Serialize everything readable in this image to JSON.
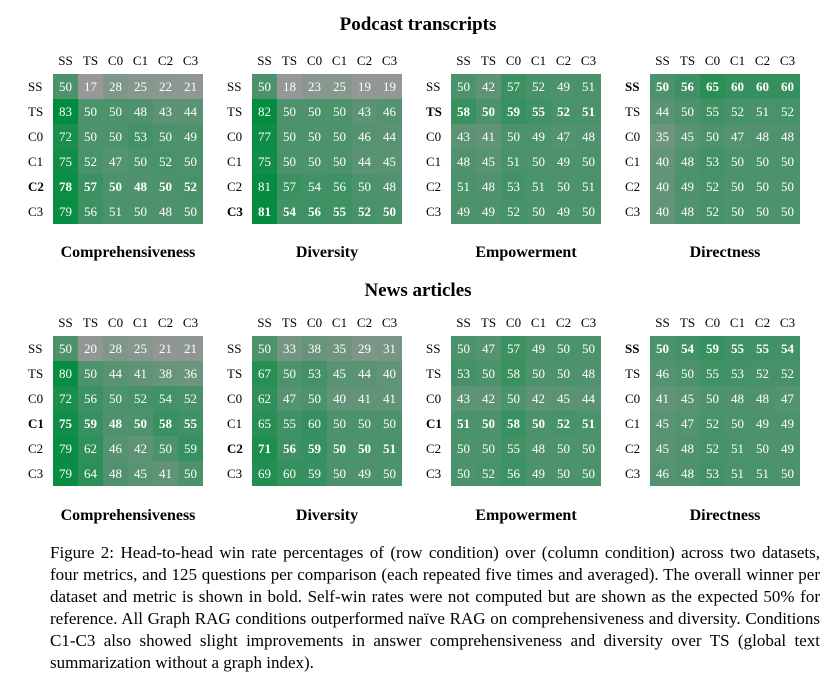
{
  "figure_number": "Figure 2:",
  "caption": "Head-to-head win rate percentages of (row condition) over (column condition) across two datasets, four metrics, and 125 questions per comparison (each repeated five times and averaged). The overall winner per dataset and metric is shown in bold. Self-win rates were not computed but are shown as the expected 50% for reference. All Graph RAG conditions outperformed naïve RAG on comprehensiveness and diversity. Conditions C1-C3 also showed slight improvements in answer comprehensiveness and diversity over TS (global text summarization without a graph index).",
  "conditions": [
    "SS",
    "TS",
    "C0",
    "C1",
    "C2",
    "C3"
  ],
  "chart_data": [
    {
      "type": "heatmap",
      "dataset": "Podcast transcripts",
      "metric": "Comprehensiveness",
      "rows": [
        "SS",
        "TS",
        "C0",
        "C1",
        "C2",
        "C3"
      ],
      "columns": [
        "SS",
        "TS",
        "C0",
        "C1",
        "C2",
        "C3"
      ],
      "bold_row": "C2",
      "values": [
        [
          50,
          17,
          28,
          25,
          22,
          21
        ],
        [
          83,
          50,
          50,
          48,
          43,
          44
        ],
        [
          72,
          50,
          50,
          53,
          50,
          49
        ],
        [
          75,
          52,
          47,
          50,
          52,
          50
        ],
        [
          78,
          57,
          50,
          48,
          50,
          52
        ],
        [
          79,
          56,
          51,
          50,
          48,
          50
        ]
      ]
    },
    {
      "type": "heatmap",
      "dataset": "Podcast transcripts",
      "metric": "Diversity",
      "rows": [
        "SS",
        "TS",
        "C0",
        "C1",
        "C2",
        "C3"
      ],
      "columns": [
        "SS",
        "TS",
        "C0",
        "C1",
        "C2",
        "C3"
      ],
      "bold_row": "C3",
      "values": [
        [
          50,
          18,
          23,
          25,
          19,
          19
        ],
        [
          82,
          50,
          50,
          50,
          43,
          46
        ],
        [
          77,
          50,
          50,
          50,
          46,
          44
        ],
        [
          75,
          50,
          50,
          50,
          44,
          45
        ],
        [
          81,
          57,
          54,
          56,
          50,
          48
        ],
        [
          81,
          54,
          56,
          55,
          52,
          50
        ]
      ]
    },
    {
      "type": "heatmap",
      "dataset": "Podcast transcripts",
      "metric": "Empowerment",
      "rows": [
        "SS",
        "TS",
        "C0",
        "C1",
        "C2",
        "C3"
      ],
      "columns": [
        "SS",
        "TS",
        "C0",
        "C1",
        "C2",
        "C3"
      ],
      "bold_row": "TS",
      "values": [
        [
          50,
          42,
          57,
          52,
          49,
          51
        ],
        [
          58,
          50,
          59,
          55,
          52,
          51
        ],
        [
          43,
          41,
          50,
          49,
          47,
          48
        ],
        [
          48,
          45,
          51,
          50,
          49,
          50
        ],
        [
          51,
          48,
          53,
          51,
          50,
          51
        ],
        [
          49,
          49,
          52,
          50,
          49,
          50
        ]
      ]
    },
    {
      "type": "heatmap",
      "dataset": "Podcast transcripts",
      "metric": "Directness",
      "rows": [
        "SS",
        "TS",
        "C0",
        "C1",
        "C2",
        "C3"
      ],
      "columns": [
        "SS",
        "TS",
        "C0",
        "C1",
        "C2",
        "C3"
      ],
      "bold_row": "SS",
      "values": [
        [
          50,
          56,
          65,
          60,
          60,
          60
        ],
        [
          44,
          50,
          55,
          52,
          51,
          52
        ],
        [
          35,
          45,
          50,
          47,
          48,
          48
        ],
        [
          40,
          48,
          53,
          50,
          50,
          50
        ],
        [
          40,
          49,
          52,
          50,
          50,
          50
        ],
        [
          40,
          48,
          52,
          50,
          50,
          50
        ]
      ]
    },
    {
      "type": "heatmap",
      "dataset": "News articles",
      "metric": "Comprehensiveness",
      "rows": [
        "SS",
        "TS",
        "C0",
        "C1",
        "C2",
        "C3"
      ],
      "columns": [
        "SS",
        "TS",
        "C0",
        "C1",
        "C2",
        "C3"
      ],
      "bold_row": "C1",
      "values": [
        [
          50,
          20,
          28,
          25,
          21,
          21
        ],
        [
          80,
          50,
          44,
          41,
          38,
          36
        ],
        [
          72,
          56,
          50,
          52,
          54,
          52
        ],
        [
          75,
          59,
          48,
          50,
          58,
          55
        ],
        [
          79,
          62,
          46,
          42,
          50,
          59
        ],
        [
          79,
          64,
          48,
          45,
          41,
          50
        ]
      ]
    },
    {
      "type": "heatmap",
      "dataset": "News articles",
      "metric": "Diversity",
      "rows": [
        "SS",
        "TS",
        "C0",
        "C1",
        "C2",
        "C3"
      ],
      "columns": [
        "SS",
        "TS",
        "C0",
        "C1",
        "C2",
        "C3"
      ],
      "bold_row": "C2",
      "values": [
        [
          50,
          33,
          38,
          35,
          29,
          31
        ],
        [
          67,
          50,
          53,
          45,
          44,
          40
        ],
        [
          62,
          47,
          50,
          40,
          41,
          41
        ],
        [
          65,
          55,
          60,
          50,
          50,
          50
        ],
        [
          71,
          56,
          59,
          50,
          50,
          51
        ],
        [
          69,
          60,
          59,
          50,
          49,
          50
        ]
      ]
    },
    {
      "type": "heatmap",
      "dataset": "News articles",
      "metric": "Empowerment",
      "rows": [
        "SS",
        "TS",
        "C0",
        "C1",
        "C2",
        "C3"
      ],
      "columns": [
        "SS",
        "TS",
        "C0",
        "C1",
        "C2",
        "C3"
      ],
      "bold_row": "C1",
      "values": [
        [
          50,
          47,
          57,
          49,
          50,
          50
        ],
        [
          53,
          50,
          58,
          50,
          50,
          48
        ],
        [
          43,
          42,
          50,
          42,
          45,
          44
        ],
        [
          51,
          50,
          58,
          50,
          52,
          51
        ],
        [
          50,
          50,
          55,
          48,
          50,
          50
        ],
        [
          50,
          52,
          56,
          49,
          50,
          50
        ]
      ]
    },
    {
      "type": "heatmap",
      "dataset": "News articles",
      "metric": "Directness",
      "rows": [
        "SS",
        "TS",
        "C0",
        "C1",
        "C2",
        "C3"
      ],
      "columns": [
        "SS",
        "TS",
        "C0",
        "C1",
        "C2",
        "C3"
      ],
      "bold_row": "SS",
      "values": [
        [
          50,
          54,
          59,
          55,
          55,
          54
        ],
        [
          46,
          50,
          55,
          53,
          52,
          52
        ],
        [
          41,
          45,
          50,
          48,
          48,
          47
        ],
        [
          45,
          47,
          52,
          50,
          49,
          49
        ],
        [
          45,
          48,
          52,
          51,
          50,
          49
        ],
        [
          46,
          48,
          53,
          51,
          51,
          50
        ]
      ]
    }
  ]
}
